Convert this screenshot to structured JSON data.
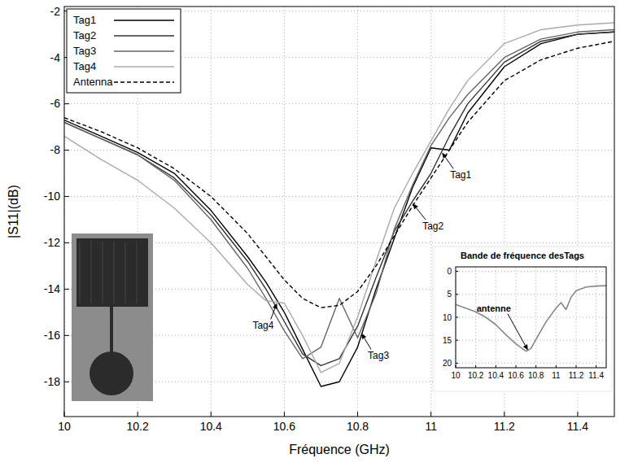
{
  "chart_data": [
    {
      "type": "line",
      "x_label": "Fréquence (GHz)",
      "y_label": "|S11|(dB)",
      "x": [
        10,
        10.1,
        10.2,
        10.3,
        10.4,
        10.5,
        10.55,
        10.6,
        10.65,
        10.7,
        10.75,
        10.8,
        10.85,
        10.9,
        10.95,
        11,
        11.05,
        11.1,
        11.2,
        11.3,
        11.4,
        11.5
      ],
      "series": [
        {
          "name": "Tag1",
          "color": "#000000",
          "line_style": "solid",
          "values": [
            -6.7,
            -7.4,
            -8.1,
            -9.0,
            -10.6,
            -12.6,
            -13.7,
            -15.0,
            -16.6,
            -18.2,
            -18.0,
            -16.5,
            -14.0,
            -11.8,
            -9.6,
            -7.9,
            -8.0,
            -6.4,
            -4.4,
            -3.4,
            -3.0,
            -2.9
          ]
        },
        {
          "name": "Tag2",
          "color": "#333333",
          "line_style": "solid",
          "values": [
            -6.8,
            -7.5,
            -8.2,
            -9.2,
            -10.8,
            -12.8,
            -14.0,
            -15.4,
            -16.8,
            -17.3,
            -17.0,
            -15.6,
            -13.5,
            -11.5,
            -10.2,
            -9.0,
            -7.4,
            -6.0,
            -4.2,
            -3.3,
            -3.0,
            -2.9
          ]
        },
        {
          "name": "Tag3",
          "color": "#666666",
          "line_style": "solid",
          "values": [
            -6.8,
            -7.5,
            -8.2,
            -9.3,
            -11.0,
            -13.1,
            -14.4,
            -15.8,
            -17.0,
            -16.5,
            -14.4,
            -16.1,
            -14.2,
            -11.4,
            -9.5,
            -7.8,
            -6.6,
            -5.6,
            -4.0,
            -3.2,
            -2.9,
            -2.8
          ]
        },
        {
          "name": "Tag4",
          "color": "#aaaaaa",
          "line_style": "solid",
          "values": [
            -7.4,
            -8.4,
            -9.3,
            -10.5,
            -12.0,
            -13.8,
            -14.5,
            -14.6,
            -16.0,
            -17.6,
            -17.2,
            -15.2,
            -12.8,
            -10.5,
            -9.0,
            -7.6,
            -6.2,
            -5.0,
            -3.4,
            -2.8,
            -2.6,
            -2.5
          ]
        },
        {
          "name": "Antenna",
          "color": "#000000",
          "line_style": "dashed",
          "values": [
            -6.6,
            -7.2,
            -7.9,
            -8.8,
            -10.0,
            -11.6,
            -12.6,
            -13.6,
            -14.4,
            -14.8,
            -14.7,
            -14.1,
            -13.0,
            -11.7,
            -10.4,
            -9.2,
            -8.0,
            -6.8,
            -5.0,
            -4.1,
            -3.6,
            -3.3
          ]
        }
      ],
      "xlim": [
        10,
        11.5
      ],
      "ylim": [
        -19.5,
        -1.8
      ],
      "xticks": [
        10,
        10.2,
        10.4,
        10.6,
        10.8,
        11,
        11.2,
        11.4
      ],
      "yticks": [
        -18,
        -16,
        -14,
        -12,
        -10,
        -8,
        -6,
        -4,
        -2
      ],
      "grid": true,
      "legend": "top-left",
      "annotations": [
        {
          "text": "Tag1",
          "x": 11.03,
          "y": -8.1
        },
        {
          "text": "Tag2",
          "x": 10.95,
          "y": -10.3
        },
        {
          "text": "Tag3",
          "x": 10.81,
          "y": -15.9
        },
        {
          "text": "Tag4",
          "x": 10.58,
          "y": -14.6
        }
      ]
    },
    {
      "type": "line",
      "title": "Bande de fréquence desTags",
      "x": [
        10,
        10.1,
        10.2,
        10.3,
        10.4,
        10.5,
        10.6,
        10.7,
        10.75,
        10.8,
        10.9,
        11,
        11.05,
        11.1,
        11.15,
        11.2,
        11.3,
        11.4,
        11.5
      ],
      "series": [
        {
          "color": "#888888",
          "line_style": "solid",
          "values": [
            7.2,
            8.0,
            8.8,
            10.0,
            11.6,
            13.8,
            15.8,
            17.4,
            16.8,
            14.8,
            11.0,
            8.0,
            6.8,
            8.3,
            5.6,
            4.2,
            3.4,
            3.2,
            3.1
          ]
        }
      ],
      "xlim": [
        10,
        11.5
      ],
      "ylim": [
        21,
        -1
      ],
      "xticks": [
        10,
        10.2,
        10.4,
        10.6,
        10.8,
        11,
        11.2,
        11.4
      ],
      "yticks": [
        0,
        5,
        10,
        15,
        20
      ],
      "grid": true,
      "annotations": [
        {
          "text": "antenne",
          "x": 10.72,
          "y": 17.2
        }
      ]
    }
  ]
}
